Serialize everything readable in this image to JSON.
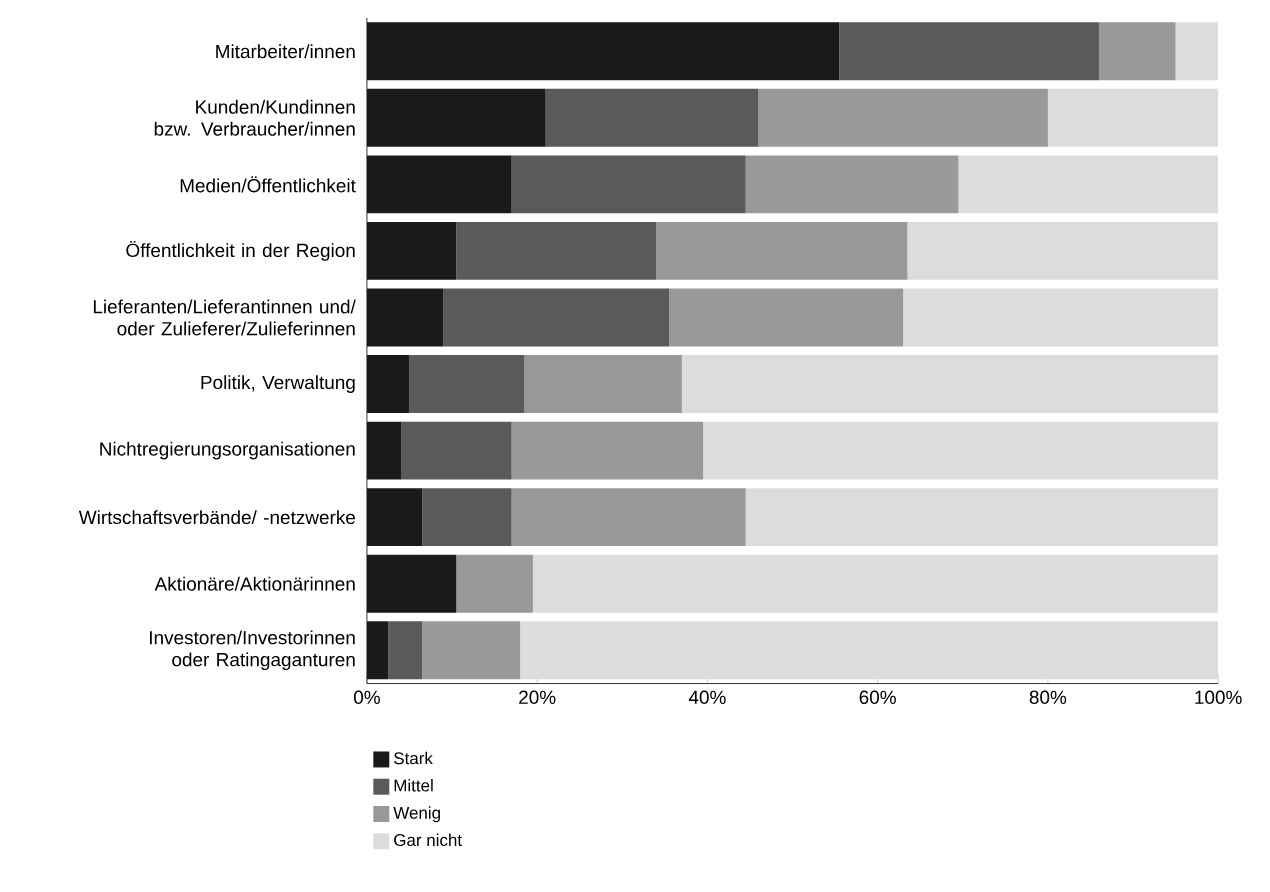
{
  "chart_data": {
    "type": "bar",
    "orientation": "horizontal",
    "stacked": true,
    "categories": [
      "Mitarbeiter/innen",
      "Kunden/Kundinnen bzw. Verbraucher/innen",
      "Medien/Öffentlichkeit",
      "Öffentlichkeit in der Region",
      "Lieferanten/Lieferantinnen und/ oder Zulieferer/Zulieferinnen",
      "Politik, Verwaltung",
      "Nichtregierungsorganisationen",
      "Wirtschaftsverbände/ -netzwerke",
      "Aktionäre/Aktionärinnen",
      "Investoren/Investorinnen oder Ratingaganturen"
    ],
    "series": [
      {
        "name": "Stark",
        "color": "#1a1a1a",
        "values": [
          55.5,
          21,
          17,
          10.5,
          9,
          5,
          4,
          6.5,
          10.5,
          2.5
        ]
      },
      {
        "name": "Mittel",
        "color": "#5a5a5a",
        "values": [
          30.5,
          25,
          27.5,
          23.5,
          26.5,
          13.5,
          13,
          10.5,
          0,
          4
        ]
      },
      {
        "name": "Wenig",
        "color": "#999999",
        "values": [
          9,
          34,
          25,
          29.5,
          27.5,
          18.5,
          22.5,
          27.5,
          9,
          11.5
        ]
      },
      {
        "name": "Gar nicht",
        "color": "#dcdcdc",
        "values": [
          5,
          20,
          30.5,
          36.5,
          37,
          63,
          60.5,
          55.5,
          80.5,
          82
        ]
      }
    ],
    "xlim": [
      0,
      100
    ],
    "xticks": [
      {
        "value": 0,
        "label": "0%"
      },
      {
        "value": 20,
        "label": "20%"
      },
      {
        "value": 40,
        "label": "40%"
      },
      {
        "value": 60,
        "label": "60%"
      },
      {
        "value": 80,
        "label": "80%"
      },
      {
        "value": 100,
        "label": "100%"
      }
    ],
    "legend": "bottom"
  }
}
